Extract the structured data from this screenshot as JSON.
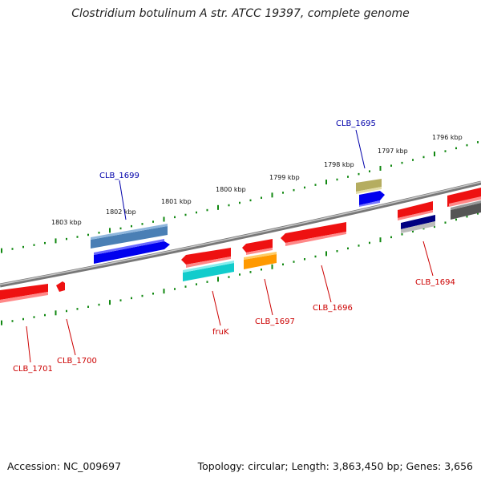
{
  "title": "Clostridium botulinum A str. ATCC 19397, complete genome",
  "footer": {
    "accession": "Accession: NC_009697",
    "summary": "Topology: circular; Length: 3,863,450 bp; Genes: 3,656"
  },
  "ticks": [
    {
      "label": "1803 kbp"
    },
    {
      "label": "1802 kbp"
    },
    {
      "label": "1801 kbp"
    },
    {
      "label": "1800 kbp"
    },
    {
      "label": "1799 kbp"
    },
    {
      "label": "1798 kbp"
    },
    {
      "label": "1797 kbp"
    },
    {
      "label": "1796 kbp"
    }
  ],
  "gene_labels": [
    {
      "id": "CLB_1699",
      "color": "#0000aa"
    },
    {
      "id": "CLB_1695",
      "color": "#0000aa"
    },
    {
      "id": "CLB_1694",
      "color": "#cc0000"
    },
    {
      "id": "CLB_1696",
      "color": "#cc0000"
    },
    {
      "id": "CLB_1697",
      "color": "#cc0000"
    },
    {
      "id": "fruK",
      "color": "#cc0000"
    },
    {
      "id": "CLB_1700",
      "color": "#cc0000"
    },
    {
      "id": "CLB_1701",
      "color": "#cc0000"
    }
  ],
  "colors": {
    "backbone": "#888888",
    "tick": "#118811",
    "red": "#ee1111",
    "blue": "#0000ee",
    "steelblue": "#4a7fb5",
    "cyan": "#11cccc",
    "orange": "#ff9900",
    "olive": "#b5ad60",
    "navy": "#000080",
    "gray": "#555555",
    "silver": "#bbbbbb"
  }
}
